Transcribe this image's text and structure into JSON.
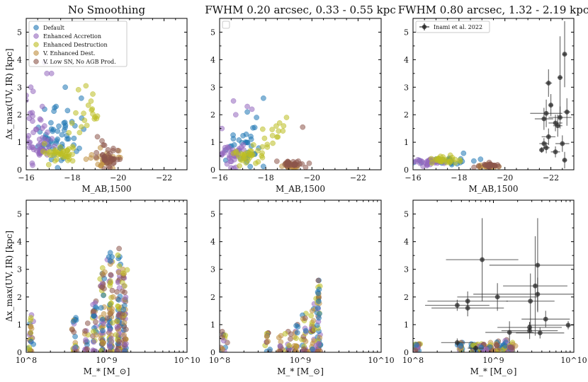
{
  "chart_data": [
    {
      "type": "scatter",
      "title": "No Smoothing",
      "xlabel": "M_AB,1500",
      "ylabel": "Δx_max(UV, IR) [kpc]",
      "xscale": "linear",
      "xlim": [
        -16,
        -23
      ],
      "ylim": [
        0,
        5.5
      ],
      "xticks": [
        -16,
        -18,
        -20,
        -22
      ],
      "xtick_labels": [
        "−16",
        "−18",
        "−20",
        "−22"
      ],
      "yticks": [
        0,
        1,
        2,
        3,
        4,
        5
      ],
      "ytick_labels": [
        "0",
        "1",
        "2",
        "3",
        "4",
        "5"
      ],
      "legend": {
        "position": "top-left",
        "entries": [
          "Default",
          "Enhanced Accretion",
          "Enhanced Destruction",
          "V. Enhanced Dest.",
          "V. Low SN, No AGB Prod."
        ]
      },
      "series": [
        {
          "name": "Default",
          "color": "#1f77b4",
          "clusters": [
            [
              -17.2,
              1.0,
              0.9,
              0.7,
              40
            ],
            [
              -17.6,
              1.6,
              0.6,
              0.7,
              15
            ]
          ],
          "points": [
            [
              -17.7,
              3.0
            ],
            [
              -18.4,
              2.6
            ],
            [
              -16.8,
              2.2
            ],
            [
              -17.8,
              2.15
            ],
            [
              -17.3,
              2.3
            ]
          ]
        },
        {
          "name": "Enhanced Accretion",
          "color": "#9467bd",
          "clusters": [
            [
              -16.6,
              0.8,
              0.6,
              0.5,
              40
            ],
            [
              -16.2,
              1.8,
              0.3,
              0.6,
              12
            ]
          ],
          "points": [
            [
              -16.8,
              3.9
            ],
            [
              -16.2,
              3.0
            ],
            [
              -16.0,
              2.7
            ],
            [
              -16.9,
              3.5
            ],
            [
              -17.1,
              3.5
            ],
            [
              -16.3,
              2.85
            ],
            [
              -16.7,
              2.3
            ]
          ]
        },
        {
          "name": "Enhanced Destruction",
          "color": "#bcbd22",
          "clusters": [
            [
              -17.5,
              0.6,
              0.5,
              0.3,
              40
            ],
            [
              -18.4,
              1.7,
              0.9,
              0.7,
              16
            ]
          ],
          "points": [
            [
              -18.6,
              3.05
            ],
            [
              -18.9,
              2.75
            ],
            [
              -18.5,
              2.05
            ],
            [
              -19.1,
              1.95
            ]
          ]
        },
        {
          "name": "V. Enhanced Dest.",
          "color": "#c09040",
          "clusters": [
            [
              -19.4,
              0.35,
              0.5,
              0.25,
              30
            ]
          ],
          "points": []
        },
        {
          "name": "V. Low SN, No AGB Prod.",
          "color": "#8c564b",
          "clusters": [
            [
              -19.6,
              0.4,
              0.4,
              0.3,
              38
            ]
          ],
          "points": [
            [
              -19.1,
              1.2
            ],
            [
              -19.3,
              1.05
            ]
          ]
        }
      ]
    },
    {
      "type": "scatter",
      "title": "FWHM 0.20 arcsec, 0.33 - 0.55 kpc",
      "xlabel": "M_AB,1500",
      "ylabel": "",
      "xscale": "linear",
      "xlim": [
        -16,
        -23
      ],
      "ylim": [
        0,
        5.5
      ],
      "xticks": [
        -16,
        -18,
        -20,
        -22
      ],
      "xtick_labels": [
        "−16",
        "−18",
        "−20",
        "−22"
      ],
      "yticks": [
        0,
        1,
        2,
        3,
        4,
        5
      ],
      "ytick_labels": [
        "0",
        "1",
        "2",
        "3",
        "4",
        "5"
      ],
      "legend": {
        "position": "top-left",
        "entries": []
      },
      "series": [
        {
          "name": "Default",
          "color": "#1f77b4",
          "clusters": [
            [
              -17.0,
              0.8,
              0.7,
              0.6,
              35
            ]
          ],
          "points": [
            [
              -17.9,
              2.6
            ],
            [
              -17.2,
              2.1
            ],
            [
              -17.6,
              1.9
            ]
          ]
        },
        {
          "name": "Enhanced Accretion",
          "color": "#9467bd",
          "clusters": [
            [
              -16.5,
              0.6,
              0.5,
              0.4,
              35
            ]
          ],
          "points": [
            [
              -16.6,
              2.5
            ],
            [
              -17.2,
              2.3
            ],
            [
              -17.4,
              2.2
            ],
            [
              -16.7,
              2.0
            ],
            [
              -16.1,
              1.5
            ]
          ]
        },
        {
          "name": "Enhanced Destruction",
          "color": "#bcbd22",
          "clusters": [
            [
              -17.3,
              0.5,
              0.5,
              0.3,
              35
            ],
            [
              -18.3,
              1.3,
              0.7,
              0.4,
              12
            ]
          ],
          "points": [
            [
              -18.9,
              1.9
            ],
            [
              -18.6,
              1.7
            ]
          ]
        },
        {
          "name": "V. Enhanced Dest.",
          "color": "#c09040",
          "clusters": [
            [
              -19.0,
              0.15,
              0.4,
              0.1,
              25
            ]
          ],
          "points": []
        },
        {
          "name": "V. Low SN, No AGB Prod.",
          "color": "#8c564b",
          "clusters": [
            [
              -19.2,
              0.2,
              0.4,
              0.12,
              30
            ]
          ],
          "points": [
            [
              -19.6,
              1.55
            ]
          ]
        }
      ]
    },
    {
      "type": "scatter",
      "title": "FWHM 0.80 arcsec, 1.32 - 2.19 kpc",
      "xlabel": "M_AB,1500",
      "ylabel": "",
      "xscale": "linear",
      "xlim": [
        -16,
        -23
      ],
      "ylim": [
        0,
        5.5
      ],
      "xticks": [
        -16,
        -18,
        -20,
        -22
      ],
      "xtick_labels": [
        "−16",
        "−18",
        "−20",
        "−22"
      ],
      "yticks": [
        0,
        1,
        2,
        3,
        4,
        5
      ],
      "ytick_labels": [
        "0",
        "1",
        "2",
        "3",
        "4",
        "5"
      ],
      "legend": {
        "position": "top-left",
        "entries": [
          "Inami et al. 2022"
        ]
      },
      "series": [
        {
          "name": "Default",
          "color": "#1f77b4",
          "clusters": [
            [
              -17.5,
              0.3,
              0.8,
              0.1,
              30
            ]
          ],
          "points": [
            [
              -18.2,
              0.6
            ]
          ]
        },
        {
          "name": "Enhanced Accretion",
          "color": "#9467bd",
          "clusters": [
            [
              -16.6,
              0.28,
              0.5,
              0.12,
              30
            ]
          ],
          "points": []
        },
        {
          "name": "Enhanced Destruction",
          "color": "#bcbd22",
          "clusters": [
            [
              -17.4,
              0.35,
              0.6,
              0.12,
              30
            ]
          ],
          "points": []
        },
        {
          "name": "V. Enhanced Dest.",
          "color": "#c09040",
          "clusters": [
            [
              -19.3,
              0.12,
              0.4,
              0.05,
              20
            ]
          ],
          "points": []
        },
        {
          "name": "V. Low SN, No AGB Prod.",
          "color": "#8c564b",
          "clusters": [
            [
              -19.3,
              0.15,
              0.4,
              0.07,
              25
            ]
          ],
          "points": []
        }
      ],
      "observations": {
        "name": "Inami et al. 2022",
        "points": [
          [
            -22.6,
            4.2,
            0.1,
            1.2
          ],
          [
            -22.4,
            3.35,
            0.1,
            1.5
          ],
          [
            -21.9,
            3.15,
            0.15,
            0.5
          ],
          [
            -22.0,
            2.35,
            0.1,
            0.4
          ],
          [
            -22.7,
            2.1,
            0.15,
            0.5
          ],
          [
            -21.8,
            2.05,
            0.7,
            0.5
          ],
          [
            -21.7,
            1.85,
            0.4,
            0.4
          ],
          [
            -22.4,
            1.9,
            0.5,
            0.4
          ],
          [
            -22.2,
            1.7,
            0.3,
            0.3
          ],
          [
            -22.3,
            1.6,
            0.2,
            0.4
          ],
          [
            -21.9,
            1.2,
            0.3,
            0.3
          ],
          [
            -21.7,
            0.95,
            0.2,
            0.2
          ],
          [
            -22.5,
            0.95,
            0.3,
            0.3
          ],
          [
            -21.8,
            0.8,
            0.15,
            0.2
          ],
          [
            -22.2,
            0.65,
            0.2,
            0.2
          ],
          [
            -22.6,
            0.35,
            0.1,
            0.3
          ],
          [
            -21.6,
            0.72,
            0.1,
            0.1
          ]
        ]
      }
    },
    {
      "type": "scatter",
      "title": "",
      "xlabel": "M_* [M_⊙]",
      "ylabel": "Δx_max(UV, IR) [kpc]",
      "xscale": "log",
      "xlim": [
        100000000,
        10000000000
      ],
      "ylim": [
        0,
        5.5
      ],
      "xticks": [
        100000000,
        1000000000,
        10000000000
      ],
      "xtick_labels": [
        "10^8",
        "10^9",
        "10^10"
      ],
      "yticks": [
        0,
        1,
        2,
        3,
        4,
        5
      ],
      "ytick_labels": [
        "0",
        "1",
        "2",
        "3",
        "4",
        "5"
      ],
      "columns_logM": [
        8.05,
        8.6,
        8.75,
        8.85,
        8.95,
        9.05,
        9.15,
        9.22
      ],
      "columns_top": [
        1.35,
        1.25,
        1.05,
        1.85,
        3.05,
        3.6,
        3.75,
        3.0
      ],
      "series": [
        {
          "name": "Default",
          "color": "#1f77b4"
        },
        {
          "name": "Enhanced Accretion",
          "color": "#9467bd"
        },
        {
          "name": "Enhanced Destruction",
          "color": "#bcbd22"
        },
        {
          "name": "V. Enhanced Dest.",
          "color": "#c09040"
        },
        {
          "name": "V. Low SN, No AGB Prod.",
          "color": "#8c564b"
        }
      ]
    },
    {
      "type": "scatter",
      "title": "",
      "xlabel": "M_* [M_⊙]",
      "ylabel": "",
      "xscale": "log",
      "xlim": [
        100000000,
        10000000000
      ],
      "ylim": [
        0,
        5.5
      ],
      "xticks": [
        100000000,
        1000000000,
        10000000000
      ],
      "xtick_labels": [
        "10^8",
        "10^9",
        "10^10"
      ],
      "yticks": [
        0,
        1,
        2,
        3,
        4,
        5
      ],
      "ytick_labels": [
        "0",
        "1",
        "2",
        "3",
        "4",
        "5"
      ],
      "columns_logM": [
        8.05,
        8.6,
        8.75,
        8.85,
        8.95,
        9.05,
        9.15,
        9.22
      ],
      "columns_top": [
        0.75,
        0.7,
        0.6,
        0.75,
        1.0,
        1.4,
        1.75,
        2.6
      ],
      "series": [
        {
          "name": "Default",
          "color": "#1f77b4"
        },
        {
          "name": "Enhanced Accretion",
          "color": "#9467bd"
        },
        {
          "name": "Enhanced Destruction",
          "color": "#bcbd22"
        },
        {
          "name": "V. Enhanced Dest.",
          "color": "#c09040"
        },
        {
          "name": "V. Low SN, No AGB Prod.",
          "color": "#8c564b"
        }
      ]
    },
    {
      "type": "scatter",
      "title": "",
      "xlabel": "M_* [M_⊙]",
      "ylabel": "",
      "xscale": "log",
      "xlim": [
        100000000,
        10000000000
      ],
      "ylim": [
        0,
        5.5
      ],
      "xticks": [
        100000000,
        1000000000,
        10000000000
      ],
      "xtick_labels": [
        "10^8",
        "10^9",
        "10^10"
      ],
      "yticks": [
        0,
        1,
        2,
        3,
        4,
        5
      ],
      "ytick_labels": [
        "0",
        "1",
        "2",
        "3",
        "4",
        "5"
      ],
      "columns_logM": [
        8.05,
        8.6,
        8.75,
        8.85,
        8.95,
        9.05,
        9.15,
        9.22
      ],
      "columns_top": [
        0.3,
        0.35,
        0.3,
        0.3,
        0.35,
        0.4,
        0.45,
        0.35
      ],
      "series": [
        {
          "name": "Default",
          "color": "#1f77b4"
        },
        {
          "name": "Enhanced Accretion",
          "color": "#9467bd"
        },
        {
          "name": "Enhanced Destruction",
          "color": "#bcbd22"
        },
        {
          "name": "V. Enhanced Dest.",
          "color": "#c09040"
        },
        {
          "name": "V. Low SN, No AGB Prod.",
          "color": "#8c564b"
        }
      ],
      "observations": {
        "name": "Inami et al. 2022",
        "points": [
          [
            8.86,
            3.35,
            0.45,
            1.5
          ],
          [
            9.55,
            3.15,
            0.6,
            1.7
          ],
          [
            9.52,
            2.4,
            0.4,
            1.8
          ],
          [
            9.55,
            2.1,
            0.8,
            0.6
          ],
          [
            9.05,
            2.0,
            0.5,
            0.5
          ],
          [
            9.46,
            1.85,
            0.3,
            1.0
          ],
          [
            8.55,
            1.7,
            0.4,
            0.2
          ],
          [
            8.68,
            1.6,
            0.45,
            0.3
          ],
          [
            8.68,
            1.85,
            0.5,
            0.35
          ],
          [
            9.65,
            1.2,
            0.3,
            0.3
          ],
          [
            9.93,
            0.98,
            0.5,
            0.15
          ],
          [
            9.45,
            0.9,
            0.4,
            0.2
          ],
          [
            9.45,
            0.78,
            0.35,
            0.3
          ],
          [
            9.58,
            0.7,
            0.3,
            0.2
          ],
          [
            9.2,
            0.72,
            0.3,
            0.4
          ],
          [
            8.55,
            0.35,
            0.2,
            0.15
          ],
          [
            8.78,
            0.15,
            0.1,
            0.1
          ]
        ]
      }
    }
  ]
}
